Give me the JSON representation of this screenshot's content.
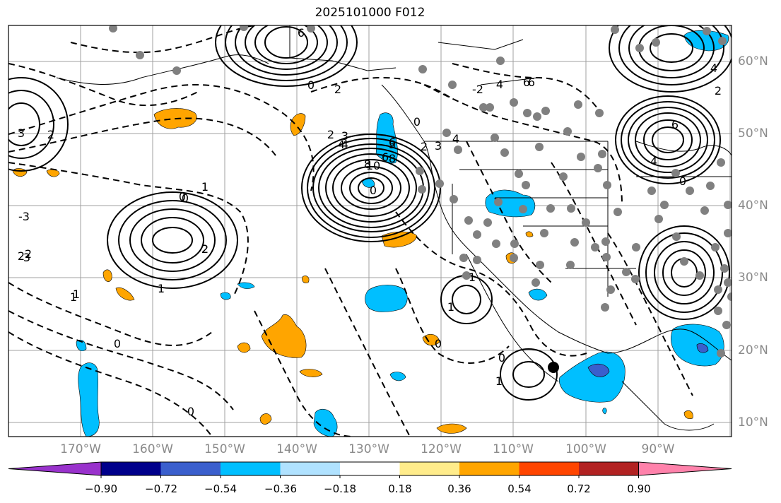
{
  "title": "2025101000 F012",
  "longitude_labels": [
    "170°W",
    "160°W",
    "150°W",
    "140°W",
    "130°W",
    "120°W",
    "110°W",
    "100°W",
    "90°W"
  ],
  "latitude_labels": [
    "60°N",
    "50°N",
    "40°N",
    "30°N",
    "20°N",
    "10°N"
  ],
  "colorbar": {
    "colors": [
      "#9932cc",
      "#00008b",
      "#3a5fcd",
      "#00bfff",
      "#b0e2ff",
      "#ffffff",
      "#ffec8b",
      "#ffa500",
      "#ff4500",
      "#b22222",
      "#ff82ab"
    ],
    "tick_labels": [
      "−0.90",
      "−0.72",
      "−0.54",
      "−0.36",
      "−0.18",
      "0.18",
      "0.36",
      "0.54",
      "0.72",
      "0.90"
    ]
  },
  "contour_labels": [
    "6",
    "0",
    "2",
    "3",
    "4",
    "6",
    "8",
    "10",
    "0",
    "2",
    "3",
    "4",
    "6",
    "6",
    "4",
    "0",
    "3",
    "3",
    "2",
    "1",
    "0",
    "2",
    "1",
    "0",
    "0",
    "1",
    "1",
    "0",
    "1",
    "-3",
    "2",
    "2",
    "4",
    "8",
    "6",
    "2",
    "3",
    "0",
    "-2",
    "4",
    "6",
    "4",
    "2",
    "0",
    "1",
    "0",
    "2",
    "1"
  ],
  "legend_colors": {
    "coast": "#000000",
    "grid": "#a0a0a0",
    "stations": "#808080"
  }
}
